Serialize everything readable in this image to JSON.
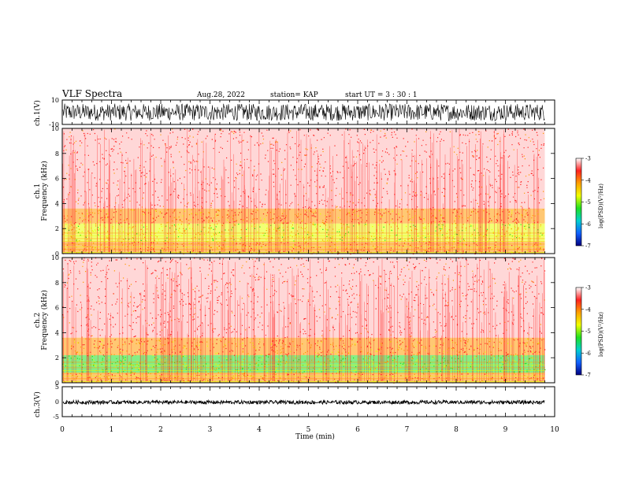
{
  "header": {
    "title": "VLF Spectra",
    "date": "Aug.28, 2022",
    "station": "station= KAP",
    "start": "start  UT  =   3  : 30 : 1"
  },
  "colors": {
    "background": "#ffffff",
    "axes": "#000000",
    "spec_red": "#ff2020",
    "spec_orange": "#ff9a00",
    "spec_yellow": "#e8ff00",
    "spec_green": "#20e020",
    "waveform": "#000000"
  },
  "chart_data": [
    {
      "type": "line",
      "panel": "ch1-waveform",
      "ylabel": "ch.1(V)",
      "ylim": [
        -10,
        10
      ],
      "yticks": [
        "10",
        "-10"
      ],
      "x_unit": "min",
      "xlim": [
        0,
        9.8
      ],
      "amplitude_range": [
        -7,
        7
      ]
    },
    {
      "type": "heatmap",
      "panel": "ch1-spectrogram",
      "ylabel": "ch.1\nFrequency (kHz)",
      "ylim": [
        0,
        10
      ],
      "yticks": [
        "10",
        "8",
        "6",
        "4",
        "2",
        "0"
      ],
      "xlim": [
        0,
        9.8
      ],
      "colorbar": {
        "label": "log(PSD)(V²/Hz)",
        "ticks": [
          "-3",
          "-4",
          "-5",
          "-6",
          "-7"
        ],
        "range": [
          -7,
          -3
        ],
        "stops": [
          "#ffffff",
          "#ff2020",
          "#ffa000",
          "#f0ff00",
          "#20e020",
          "#00d0d0",
          "#1060ff",
          "#000080"
        ]
      },
      "bands_khz": [
        {
          "from": 3.6,
          "to": 10,
          "level": -3.6
        },
        {
          "from": 2.4,
          "to": 3.6,
          "level": -4.3
        },
        {
          "from": 1.0,
          "to": 2.4,
          "level": -4.9
        },
        {
          "from": 0.0,
          "to": 1.0,
          "level": -4.2
        }
      ]
    },
    {
      "type": "heatmap",
      "panel": "ch2-spectrogram",
      "ylabel": "ch.2\nFrequency (kHz)",
      "ylim": [
        0,
        10
      ],
      "yticks": [
        "10",
        "8",
        "6",
        "4",
        "2",
        "0"
      ],
      "xlim": [
        0,
        9.8
      ],
      "colorbar": {
        "label": "log(PSD)(V²/Hz)",
        "ticks": [
          "-3",
          "-4",
          "-5",
          "-6",
          "-7"
        ],
        "range": [
          -7,
          -3
        ],
        "stops": [
          "#ffffff",
          "#ff2020",
          "#ffa000",
          "#f0ff00",
          "#20e020",
          "#00d0d0",
          "#1060ff",
          "#000080"
        ]
      },
      "bands_khz": [
        {
          "from": 3.6,
          "to": 10,
          "level": -3.6
        },
        {
          "from": 2.2,
          "to": 3.6,
          "level": -4.3
        },
        {
          "from": 0.8,
          "to": 2.2,
          "level": -5.0
        },
        {
          "from": 0.0,
          "to": 0.8,
          "level": -4.2
        }
      ]
    },
    {
      "type": "line",
      "panel": "ch3-waveform",
      "ylabel": "ch.3(V)",
      "ylim": [
        -5,
        5
      ],
      "yticks": [
        "5",
        "0",
        "-5"
      ],
      "xlim": [
        0,
        9.8
      ],
      "amplitude_range": [
        -0.8,
        0.4
      ]
    }
  ],
  "x_axis": {
    "label": "Time (min)",
    "ticks": [
      "0",
      "1",
      "2",
      "3",
      "4",
      "5",
      "6",
      "7",
      "8",
      "9",
      "10"
    ],
    "range": [
      0,
      10
    ]
  }
}
